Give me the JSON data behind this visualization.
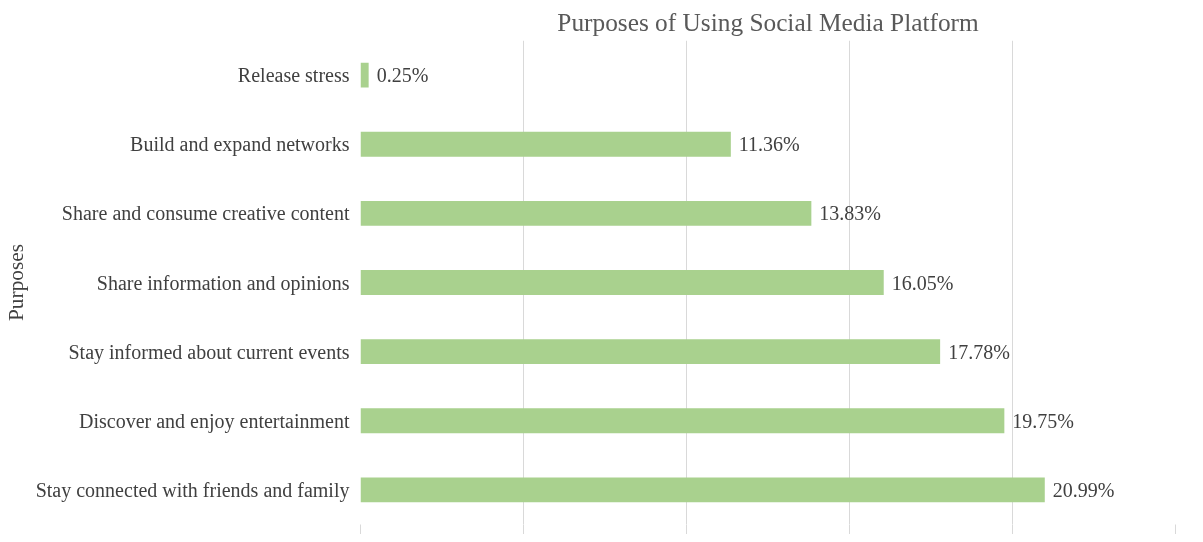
{
  "chart_data": {
    "type": "bar",
    "orientation": "horizontal",
    "title": "Purposes of Using Social Media Platform",
    "ylabel": "Purposes",
    "categories": [
      "Release stress",
      "Build and expand networks",
      "Share and consume creative content",
      "Share information and opinions",
      "Stay informed about current events",
      "Discover and enjoy entertainment",
      "Stay connected with friends and family"
    ],
    "values": [
      0.25,
      11.36,
      13.83,
      16.05,
      17.78,
      19.75,
      20.99
    ],
    "value_labels": [
      "0.25%",
      "11.36%",
      "13.83%",
      "16.05%",
      "17.78%",
      "19.75%",
      "20.99%"
    ],
    "color": "#a9d18e",
    "xticks": [
      {
        "value": 0,
        "label": null
      },
      {
        "value": 5,
        "label": null
      },
      {
        "value": 10,
        "label": null
      },
      {
        "value": 15,
        "label": null
      },
      {
        "value": 20,
        "label": null
      },
      {
        "value": 25,
        "label": null
      }
    ],
    "tick_labels": "y",
    "grid": "x"
  }
}
